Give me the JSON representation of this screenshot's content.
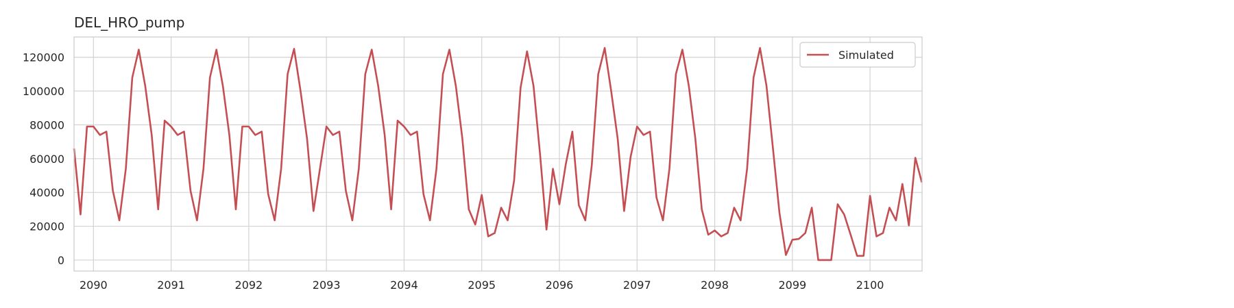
{
  "chart_data": {
    "type": "line",
    "title": "DEL_HRO_pump",
    "xlabel": "",
    "ylabel": "",
    "x_start": "2089-10",
    "x_end": "2100-09",
    "xlim": [
      2089.75,
      2100.67
    ],
    "ylim": [
      -6500,
      132000
    ],
    "x_ticks": [
      "2090",
      "2091",
      "2092",
      "2093",
      "2094",
      "2095",
      "2096",
      "2097",
      "2098",
      "2099",
      "2100"
    ],
    "y_ticks": [
      0,
      20000,
      40000,
      60000,
      80000,
      100000,
      120000
    ],
    "y_tick_labels": [
      "0",
      "20000",
      "40000",
      "60000",
      "80000",
      "100000",
      "120000"
    ],
    "grid": true,
    "legend": {
      "position": "top-right",
      "entries": [
        "Simulated"
      ]
    },
    "series": [
      {
        "name": "Simulated",
        "color": "#c44e52",
        "values": [
          66000,
          27000,
          79000,
          79000,
          74000,
          76000,
          41000,
          23500,
          54000,
          108000,
          124500,
          103000,
          74000,
          30000,
          82500,
          79000,
          74000,
          76000,
          41000,
          23500,
          54000,
          108000,
          124500,
          103000,
          74000,
          30000,
          79000,
          79000,
          74000,
          76000,
          39000,
          23500,
          54000,
          110000,
          125000,
          100000,
          72000,
          29000,
          54000,
          79000,
          74000,
          76000,
          41000,
          23500,
          54000,
          110000,
          124500,
          103000,
          74000,
          30000,
          82500,
          79000,
          74000,
          76000,
          39000,
          23500,
          54000,
          110000,
          124500,
          103000,
          72000,
          30000,
          21000,
          38500,
          14000,
          16000,
          31000,
          23500,
          47000,
          102000,
          123500,
          103000,
          63000,
          18000,
          54000,
          33000,
          57000,
          76000,
          32500,
          23500,
          56000,
          110000,
          125500,
          100000,
          72000,
          29000,
          61000,
          79000,
          74000,
          76000,
          37000,
          23500,
          54000,
          110000,
          124500,
          103000,
          72000,
          30000,
          15000,
          17500,
          14000,
          16000,
          31000,
          23500,
          54000,
          108000,
          125500,
          103000,
          66000,
          28000,
          3000,
          12000,
          12500,
          16000,
          31000,
          0,
          0,
          0,
          33000,
          27000,
          15000,
          2500,
          2500,
          38000,
          14000,
          16000,
          31000,
          23500,
          45000,
          20500,
          60500,
          46000
        ]
      }
    ]
  }
}
